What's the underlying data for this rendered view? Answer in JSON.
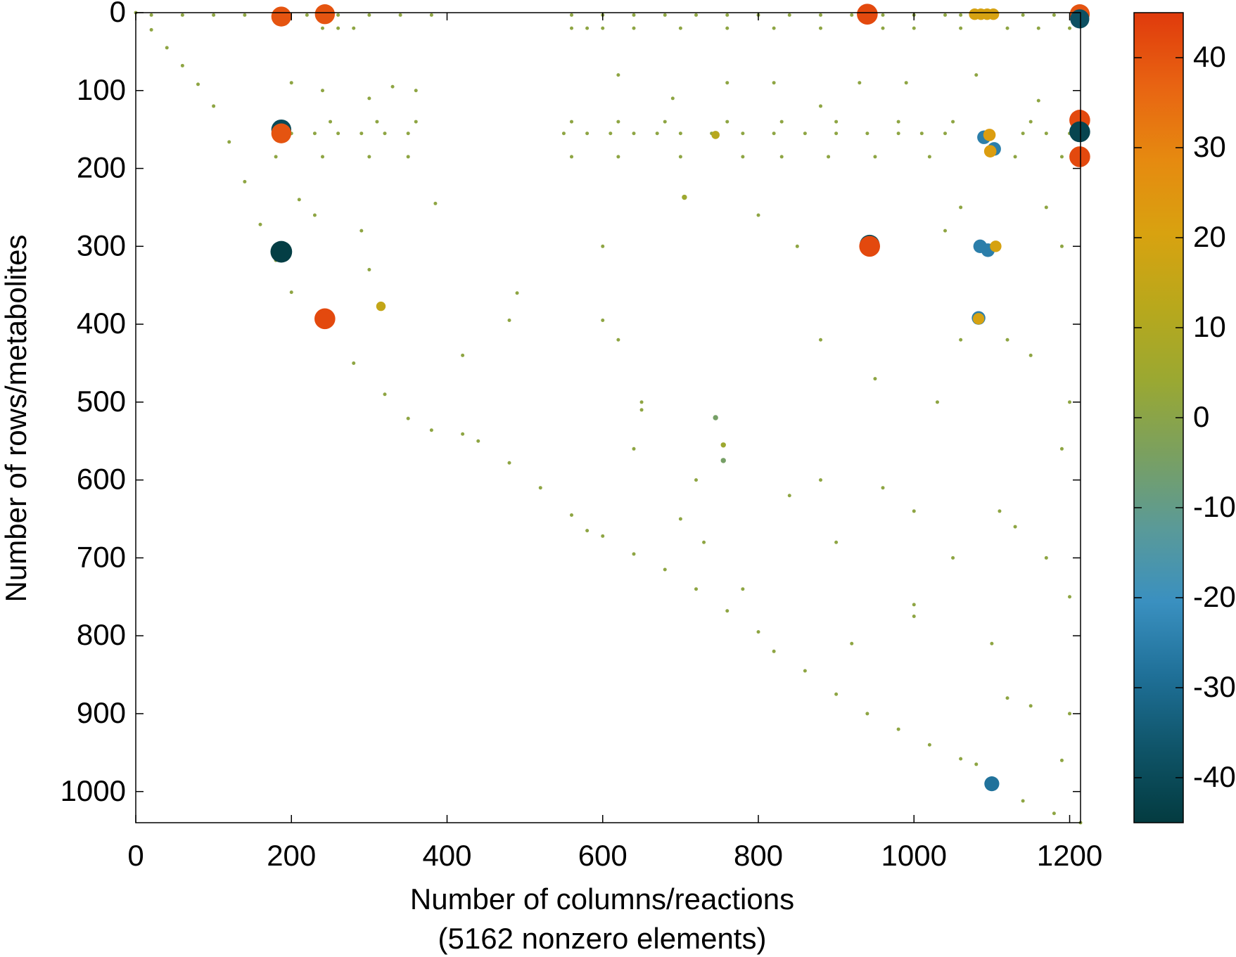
{
  "chart_data": {
    "type": "scatter",
    "x_label": "Number of columns/reactions",
    "x_sublabel": "(5162 nonzero elements)",
    "y_label": "Number of rows/metabolites",
    "xlim": [
      0,
      1214
    ],
    "ylim": [
      1040,
      0
    ],
    "xticks": [
      0,
      200,
      400,
      600,
      800,
      1000,
      1200
    ],
    "yticks": [
      0,
      100,
      200,
      300,
      400,
      500,
      600,
      700,
      800,
      900,
      1000
    ],
    "clim": [
      -45,
      45
    ],
    "cticks": [
      -40,
      -30,
      -20,
      -10,
      0,
      10,
      20,
      30,
      40
    ],
    "colormap": [
      "#033b40",
      "#0f5468",
      "#1f7098",
      "#3a90c0",
      "#5a9a98",
      "#7aa060",
      "#9aa832",
      "#b8a81c",
      "#d8a210",
      "#e68a10",
      "#e86412",
      "#e03a0c"
    ],
    "x": [
      0,
      20,
      40,
      60,
      80,
      100,
      120,
      140,
      160,
      180,
      200,
      240,
      280,
      320,
      350,
      380,
      420,
      440,
      480,
      520,
      560,
      580,
      600,
      640,
      680,
      720,
      760,
      800,
      820,
      860,
      900,
      940,
      980,
      1020,
      1060,
      1080,
      1100,
      1140,
      1180,
      1214,
      20,
      60,
      100,
      140,
      180,
      220,
      260,
      300,
      340,
      380,
      560,
      600,
      640,
      680,
      720,
      760,
      800,
      840,
      880,
      920,
      960,
      1000,
      1040,
      1060,
      1140,
      1180,
      240,
      260,
      280,
      560,
      580,
      600,
      640,
      700,
      760,
      820,
      880,
      960,
      1000,
      1060,
      1120,
      1160,
      1200,
      200,
      230,
      260,
      290,
      320,
      350,
      550,
      580,
      610,
      640,
      670,
      700,
      740,
      780,
      820,
      860,
      900,
      940,
      980,
      1010,
      1040,
      1140,
      1170,
      1200,
      190,
      250,
      310,
      360,
      560,
      620,
      680,
      760,
      830,
      900,
      980,
      1050,
      1150,
      180,
      240,
      300,
      350,
      560,
      620,
      700,
      780,
      830,
      890,
      950,
      1020,
      1130,
      1190,
      210,
      230,
      290,
      300,
      490,
      420,
      385,
      600,
      620,
      650,
      640,
      700,
      730,
      780,
      650,
      840,
      900,
      960,
      1000,
      1050,
      880,
      950,
      1030,
      1120,
      1150,
      1200,
      1190,
      1130,
      1170,
      1200,
      1120,
      1150,
      1160,
      1100,
      1000,
      920,
      1060,
      1040,
      1060,
      1170,
      1190,
      850,
      800,
      690,
      760,
      990,
      1080,
      820,
      880,
      930,
      620,
      240,
      300,
      200,
      330,
      360,
      480,
      600,
      880,
      1000,
      720,
      1110,
      1200,
      1190,
      315,
      745,
      745,
      755,
      755,
      705,
      187,
      243,
      940,
      1078,
      1086,
      1094,
      1102,
      1213,
      1213,
      187,
      187,
      1213,
      1213,
      1213,
      187,
      943,
      943,
      243,
      1090,
      1097,
      1103,
      1098,
      1085,
      1095,
      1105,
      1083,
      1083,
      1100
    ],
    "y": [
      0,
      22,
      45,
      68,
      92,
      120,
      166,
      217,
      272,
      318,
      359,
      399,
      450,
      490,
      521,
      536,
      541,
      550,
      578,
      610,
      645,
      665,
      672,
      695,
      715,
      740,
      768,
      795,
      820,
      845,
      875,
      900,
      920,
      940,
      958,
      965,
      995,
      1012,
      1028,
      1040,
      3,
      3,
      3,
      3,
      3,
      3,
      3,
      3,
      3,
      3,
      3,
      3,
      3,
      3,
      3,
      3,
      3,
      3,
      3,
      3,
      3,
      3,
      3,
      3,
      3,
      3,
      20,
      20,
      20,
      20,
      20,
      20,
      20,
      20,
      20,
      20,
      20,
      20,
      20,
      20,
      20,
      20,
      20,
      155,
      155,
      155,
      155,
      155,
      155,
      155,
      155,
      155,
      155,
      155,
      155,
      155,
      155,
      155,
      155,
      155,
      155,
      155,
      155,
      155,
      155,
      155,
      155,
      140,
      140,
      140,
      140,
      140,
      140,
      140,
      140,
      140,
      140,
      140,
      140,
      140,
      185,
      185,
      185,
      185,
      185,
      185,
      185,
      185,
      185,
      185,
      185,
      185,
      185,
      185,
      240,
      260,
      280,
      330,
      360,
      440,
      245,
      300,
      420,
      510,
      560,
      650,
      680,
      740,
      500,
      620,
      680,
      610,
      640,
      700,
      420,
      470,
      500,
      420,
      440,
      500,
      560,
      660,
      700,
      750,
      880,
      890,
      113,
      810,
      775,
      810,
      420,
      280,
      250,
      250,
      300,
      300,
      260,
      110,
      90,
      90,
      80,
      90,
      120,
      90,
      80,
      100,
      110,
      90,
      95,
      100,
      395,
      395,
      600,
      760,
      600,
      640,
      900,
      960,
      377,
      157,
      520,
      555,
      575,
      237,
      5,
      2,
      2,
      2,
      2,
      2,
      2,
      2,
      8,
      150,
      155,
      138,
      153,
      185,
      307,
      298,
      300,
      393,
      160,
      157,
      175,
      178,
      300,
      305,
      300,
      392,
      393,
      990
    ],
    "values": [
      1,
      1,
      1,
      1,
      1,
      1,
      1,
      1,
      1,
      1,
      1,
      1,
      1,
      1,
      1,
      1,
      1,
      1,
      1,
      1,
      1,
      1,
      1,
      1,
      1,
      1,
      1,
      1,
      1,
      1,
      1,
      1,
      1,
      1,
      1,
      1,
      1,
      1,
      1,
      1,
      1,
      1,
      1,
      1,
      1,
      1,
      1,
      1,
      1,
      1,
      1,
      1,
      1,
      1,
      1,
      1,
      1,
      1,
      1,
      1,
      1,
      1,
      1,
      1,
      1,
      1,
      1,
      1,
      1,
      1,
      1,
      1,
      1,
      1,
      1,
      1,
      1,
      1,
      1,
      1,
      1,
      1,
      1,
      1,
      1,
      1,
      1,
      1,
      1,
      1,
      1,
      1,
      1,
      1,
      1,
      1,
      1,
      1,
      1,
      1,
      1,
      1,
      1,
      1,
      1,
      1,
      1,
      1,
      1,
      1,
      1,
      1,
      1,
      1,
      1,
      1,
      1,
      1,
      1,
      1,
      1,
      1,
      1,
      1,
      1,
      1,
      1,
      1,
      1,
      1,
      1,
      1,
      1,
      1,
      1,
      1,
      1,
      1,
      1,
      1,
      1,
      1,
      1,
      1,
      1,
      1,
      1,
      1,
      1,
      1,
      1,
      1,
      1,
      1,
      1,
      1,
      1,
      1,
      1,
      1,
      1,
      1,
      1,
      1,
      1,
      1,
      1,
      1,
      1,
      1,
      1,
      1,
      1,
      1,
      1,
      1,
      1,
      1,
      1,
      1,
      1,
      1,
      1,
      1,
      1,
      1,
      1,
      1,
      1,
      1,
      1,
      1,
      1,
      1,
      1,
      1,
      1,
      1,
      15,
      12,
      -5,
      5,
      -5,
      5,
      40,
      40,
      42,
      20,
      20,
      20,
      20,
      40,
      -38,
      -40,
      40,
      42,
      -42,
      42,
      -44,
      -40,
      42,
      42,
      -25,
      22,
      -25,
      22,
      -25,
      -25,
      20,
      -25,
      20,
      -28
    ]
  }
}
